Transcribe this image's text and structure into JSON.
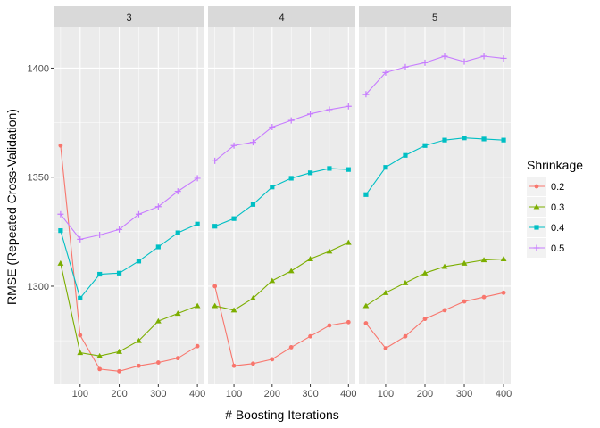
{
  "chart_data": {
    "type": "line",
    "xlabel": "# Boosting Iterations",
    "ylabel": "RMSE (Repeated Cross-Validation)",
    "x": [
      50,
      100,
      150,
      200,
      250,
      300,
      350,
      400
    ],
    "x_ticks": [
      100,
      200,
      300,
      400
    ],
    "y_ticks": [
      1300,
      1350,
      1400
    ],
    "xlim": [
      32,
      418
    ],
    "ylim": [
      1255,
      1419
    ],
    "legend": {
      "title": "Shrinkage",
      "placement": "right"
    },
    "grid": true,
    "facets": [
      {
        "label": "3",
        "series": [
          {
            "name": "0.2",
            "values": [
              1364.5,
              1277.5,
              1262,
              1261,
              1263.5,
              1265,
              1267,
              1272.5
            ]
          },
          {
            "name": "0.3",
            "values": [
              1310.5,
              1269.5,
              1268,
              1270,
              1275,
              1284,
              1287.5,
              1291
            ]
          },
          {
            "name": "0.4",
            "values": [
              1325.5,
              1294.5,
              1305.5,
              1306,
              1311.5,
              1318,
              1324.5,
              1328.5
            ]
          },
          {
            "name": "0.5",
            "values": [
              1333,
              1321.5,
              1323.5,
              1326,
              1333,
              1336.5,
              1343.5,
              1349.5
            ]
          }
        ]
      },
      {
        "label": "4",
        "series": [
          {
            "name": "0.2",
            "values": [
              1300,
              1263.5,
              1264.5,
              1266.5,
              1272,
              1277,
              1282,
              1283.5
            ]
          },
          {
            "name": "0.3",
            "values": [
              1291,
              1289,
              1294.5,
              1302.5,
              1307,
              1312.5,
              1316,
              1320
            ]
          },
          {
            "name": "0.4",
            "values": [
              1327.5,
              1331,
              1337.5,
              1345.5,
              1349.5,
              1352,
              1354,
              1353.5
            ]
          },
          {
            "name": "0.5",
            "values": [
              1357.5,
              1364.5,
              1366,
              1373,
              1376,
              1379,
              1381,
              1382.5
            ]
          }
        ]
      },
      {
        "label": "5",
        "series": [
          {
            "name": "0.2",
            "values": [
              1283,
              1271.5,
              1277,
              1285,
              1289,
              1293,
              1295,
              1297
            ]
          },
          {
            "name": "0.3",
            "values": [
              1291,
              1297,
              1301.5,
              1306,
              1309,
              1310.5,
              1312,
              1312.5
            ]
          },
          {
            "name": "0.4",
            "values": [
              1342,
              1354.5,
              1360,
              1364.5,
              1367,
              1368,
              1367.5,
              1367
            ]
          },
          {
            "name": "0.5",
            "values": [
              1388,
              1398,
              1400.5,
              1402.5,
              1405.5,
              1403,
              1405.5,
              1404.5
            ]
          }
        ]
      }
    ],
    "colors": {
      "0.2": "#f8766d",
      "0.3": "#7cae00",
      "0.4": "#00bfc4",
      "0.5": "#c77cff"
    },
    "markers": {
      "0.2": "circle",
      "0.3": "triangle",
      "0.4": "square",
      "0.5": "plus"
    }
  }
}
